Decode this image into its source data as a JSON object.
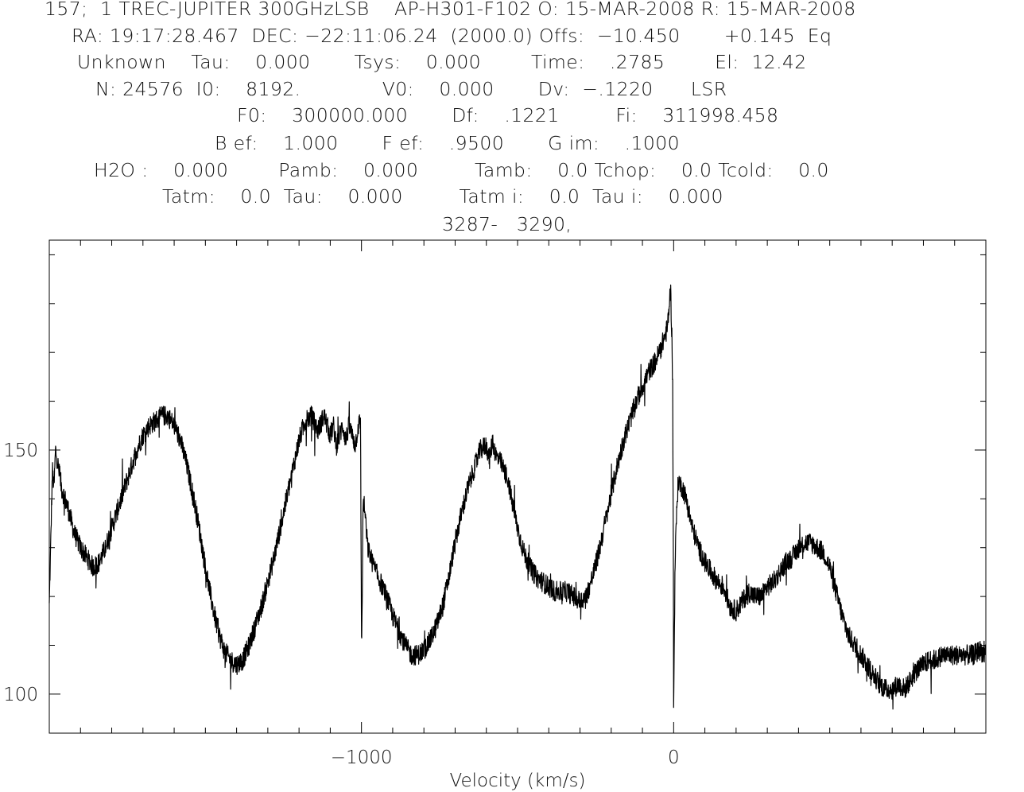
{
  "header": {
    "lines": [
      "157;  1 TREC-JUPITER 300GHzLSB    AP-H301-F102 O: 15-MAR-2008 R: 15-MAR-2008",
      "RA: 19:17:28.467  DEC: −22:11:06.24  (2000.0) Offs:  −10.450       +0.145  Eq",
      "Unknown    Tau:    0.000       Tsys:    0.000        Time:    .2785        El:  12.42",
      "N: 24576  I0:    8192.             V0:    0.000       Dv:  −.1220      LSR",
      "F0:    300000.000       Df:    .1221         Fi:    311998.458",
      "B ef:    1.000       F ef:    .9500       G im:    .1000",
      "H2O :    0.000        Pamb:    0.000         Tamb:    0.0 Tchop:    0.0 Tcold:    0.0",
      "Tatm:    0.0  Tau:    0.000         Tatm i:    0.0  Tau i:    0.000",
      "3287-   3290,"
    ]
  },
  "chart_data": {
    "type": "line",
    "title": "",
    "xlabel": "Velocity (km/s)",
    "ylabel": "",
    "xlim": [
      -2000,
      1000
    ],
    "ylim": [
      92,
      193
    ],
    "x_ticks": [
      -1000,
      0
    ],
    "x_tick_labels": [
      "−1000",
      "0"
    ],
    "y_ticks": [
      100,
      150
    ],
    "y_tick_labels": [
      "100",
      "150"
    ],
    "grid": false,
    "legend": "none",
    "line_color": "#000000",
    "series": [
      {
        "x": [
          -2000,
          -1995,
          -1990,
          -1985,
          -1980,
          -1975,
          -1960,
          -1940,
          -1920,
          -1900,
          -1880,
          -1860,
          -1840,
          -1820,
          -1800,
          -1780,
          -1760,
          -1740,
          -1720,
          -1700,
          -1680,
          -1660,
          -1640,
          -1620,
          -1600,
          -1580,
          -1560,
          -1540,
          -1520,
          -1500,
          -1480,
          -1460,
          -1440,
          -1420,
          -1400,
          -1380,
          -1360,
          -1340,
          -1320,
          -1300,
          -1280,
          -1260,
          -1240,
          -1220,
          -1200,
          -1180,
          -1160,
          -1140,
          -1120,
          -1100,
          -1090,
          -1080,
          -1070,
          -1060,
          -1050,
          -1040,
          -1030,
          -1020,
          -1010,
          -1003,
          -1000,
          -998,
          -995,
          -990,
          -980,
          -960,
          -940,
          -920,
          -900,
          -880,
          -860,
          -840,
          -820,
          -800,
          -780,
          -760,
          -740,
          -720,
          -700,
          -680,
          -660,
          -640,
          -620,
          -600,
          -590,
          -580,
          -570,
          -560,
          -550,
          -540,
          -530,
          -520,
          -500,
          -480,
          -460,
          -440,
          -420,
          -400,
          -380,
          -360,
          -340,
          -320,
          -300,
          -280,
          -260,
          -240,
          -220,
          -200,
          -180,
          -160,
          -140,
          -120,
          -100,
          -80,
          -60,
          -40,
          -20,
          -10,
          -5,
          -3,
          -1,
          0,
          2,
          5,
          10,
          15,
          20,
          30,
          40,
          60,
          80,
          100,
          120,
          140,
          160,
          180,
          200,
          220,
          240,
          260,
          280,
          300,
          320,
          340,
          360,
          380,
          400,
          420,
          440,
          460,
          480,
          500,
          520,
          540,
          560,
          580,
          600,
          620,
          640,
          660,
          680,
          700,
          720,
          740,
          760,
          780,
          800,
          820,
          840,
          860,
          880,
          900,
          920,
          940,
          960,
          980,
          1000
        ],
        "y": [
          118,
          132,
          146,
          142,
          150,
          148,
          142,
          138,
          133,
          130,
          128,
          126,
          127,
          130,
          134,
          138,
          142,
          146,
          150,
          153,
          155,
          156,
          157,
          157,
          155,
          152,
          147,
          141,
          134,
          126,
          119,
          113,
          109,
          107,
          106,
          107,
          110,
          114,
          118,
          123,
          128,
          134,
          140,
          146,
          152,
          156,
          157,
          154,
          157,
          153,
          155,
          151,
          153,
          155,
          152,
          155,
          153,
          151,
          155,
          156,
          112,
          115,
          140,
          138,
          130,
          126,
          123,
          120,
          116,
          113,
          110,
          108,
          108,
          109,
          111,
          114,
          118,
          124,
          131,
          137,
          142,
          146,
          150,
          151,
          148,
          152,
          149,
          148,
          147,
          145,
          144,
          140,
          134,
          129,
          126,
          124,
          123,
          122,
          121,
          121,
          121,
          120,
          119,
          120,
          124,
          129,
          135,
          141,
          147,
          152,
          156,
          160,
          163,
          166,
          168,
          171,
          175,
          183,
          172,
          160,
          130,
          98,
          110,
          128,
          138,
          144,
          143,
          142,
          140,
          134,
          130,
          127,
          125,
          123,
          122,
          118,
          117,
          119,
          121,
          120,
          120,
          122,
          123,
          125,
          127,
          128,
          130,
          131,
          131,
          130,
          129,
          126,
          121,
          116,
          112,
          110,
          108,
          106,
          104,
          102,
          101,
          101,
          102,
          101,
          103,
          105,
          106,
          107,
          107,
          108,
          108,
          108,
          108,
          108,
          108,
          109,
          108
        ]
      }
    ]
  }
}
